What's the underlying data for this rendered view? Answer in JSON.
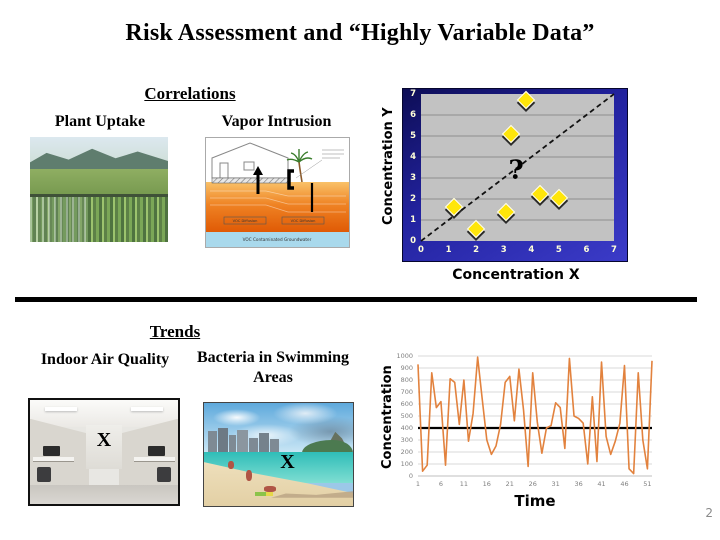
{
  "slide": {
    "title": "Risk Assessment and “Highly Variable Data”",
    "page_number": "2"
  },
  "correlations": {
    "heading": "Correlations",
    "plant_uptake_label": "Plant Uptake",
    "vapor_intrusion_label": "Vapor Intrusion",
    "vapor_labels": {
      "diffusion_left": "VOC Diffusion",
      "diffusion_right": "VOC Diffusion",
      "groundwater": "VOC Contaminated Groundwater"
    }
  },
  "trends": {
    "heading": "Trends",
    "indoor_air_label": "Indoor Air Quality",
    "bacteria_label": "Bacteria in Swimming Areas",
    "indoor_x_marker": "X",
    "beach_x_marker": "X"
  },
  "chart_data": [
    {
      "type": "scatter",
      "xlabel": "Concentration X",
      "ylabel": "Concentration Y",
      "xlim": [
        0,
        7
      ],
      "ylim": [
        0,
        7
      ],
      "xticks": [
        0,
        1,
        2,
        3,
        4,
        5,
        6,
        7
      ],
      "yticks": [
        0,
        1,
        2,
        3,
        4,
        5,
        6,
        7
      ],
      "points": [
        [
          1.2,
          1.6
        ],
        [
          2.0,
          0.55
        ],
        [
          3.1,
          1.4
        ],
        [
          3.25,
          5.1
        ],
        [
          3.8,
          6.7
        ],
        [
          4.3,
          2.25
        ],
        [
          5.0,
          2.05
        ]
      ],
      "trendline": {
        "from": [
          0,
          0
        ],
        "to": [
          7,
          7
        ],
        "style": "dashed",
        "color": "#111111"
      },
      "annotation": {
        "text": "?",
        "x": 3.45,
        "y": 3.3
      },
      "marker": "diamond",
      "marker_color": "#ffe60a",
      "plot_bg": "#c2c2c2",
      "grid": "horizontal",
      "grid_color": "#8f8f8f",
      "tick_color": "#ffffd9",
      "legend": "none"
    },
    {
      "type": "line",
      "xlabel": "Time",
      "ylabel": "Concentration",
      "ylim": [
        0,
        1000
      ],
      "yticks": [
        0,
        100,
        200,
        300,
        400,
        500,
        600,
        700,
        800,
        900,
        1000
      ],
      "xticks": [
        1,
        6,
        11,
        16,
        21,
        26,
        31,
        36,
        41,
        46,
        51
      ],
      "x_start": 1,
      "values": [
        930,
        40,
        90,
        860,
        570,
        620,
        90,
        810,
        780,
        430,
        800,
        290,
        520,
        990,
        640,
        300,
        180,
        250,
        430,
        780,
        830,
        460,
        890,
        550,
        80,
        860,
        450,
        190,
        400,
        420,
        610,
        570,
        230,
        980,
        500,
        480,
        440,
        100,
        660,
        120,
        950,
        330,
        180,
        290,
        440,
        920,
        60,
        20,
        860,
        300,
        60,
        960
      ],
      "mean_line": 400,
      "line_color": "#e2823e",
      "mean_line_color": "#000000",
      "grid": "horizontal",
      "grid_color": "#d9d9d9",
      "tick_color": "#7f7f7f",
      "legend": "none"
    }
  ]
}
